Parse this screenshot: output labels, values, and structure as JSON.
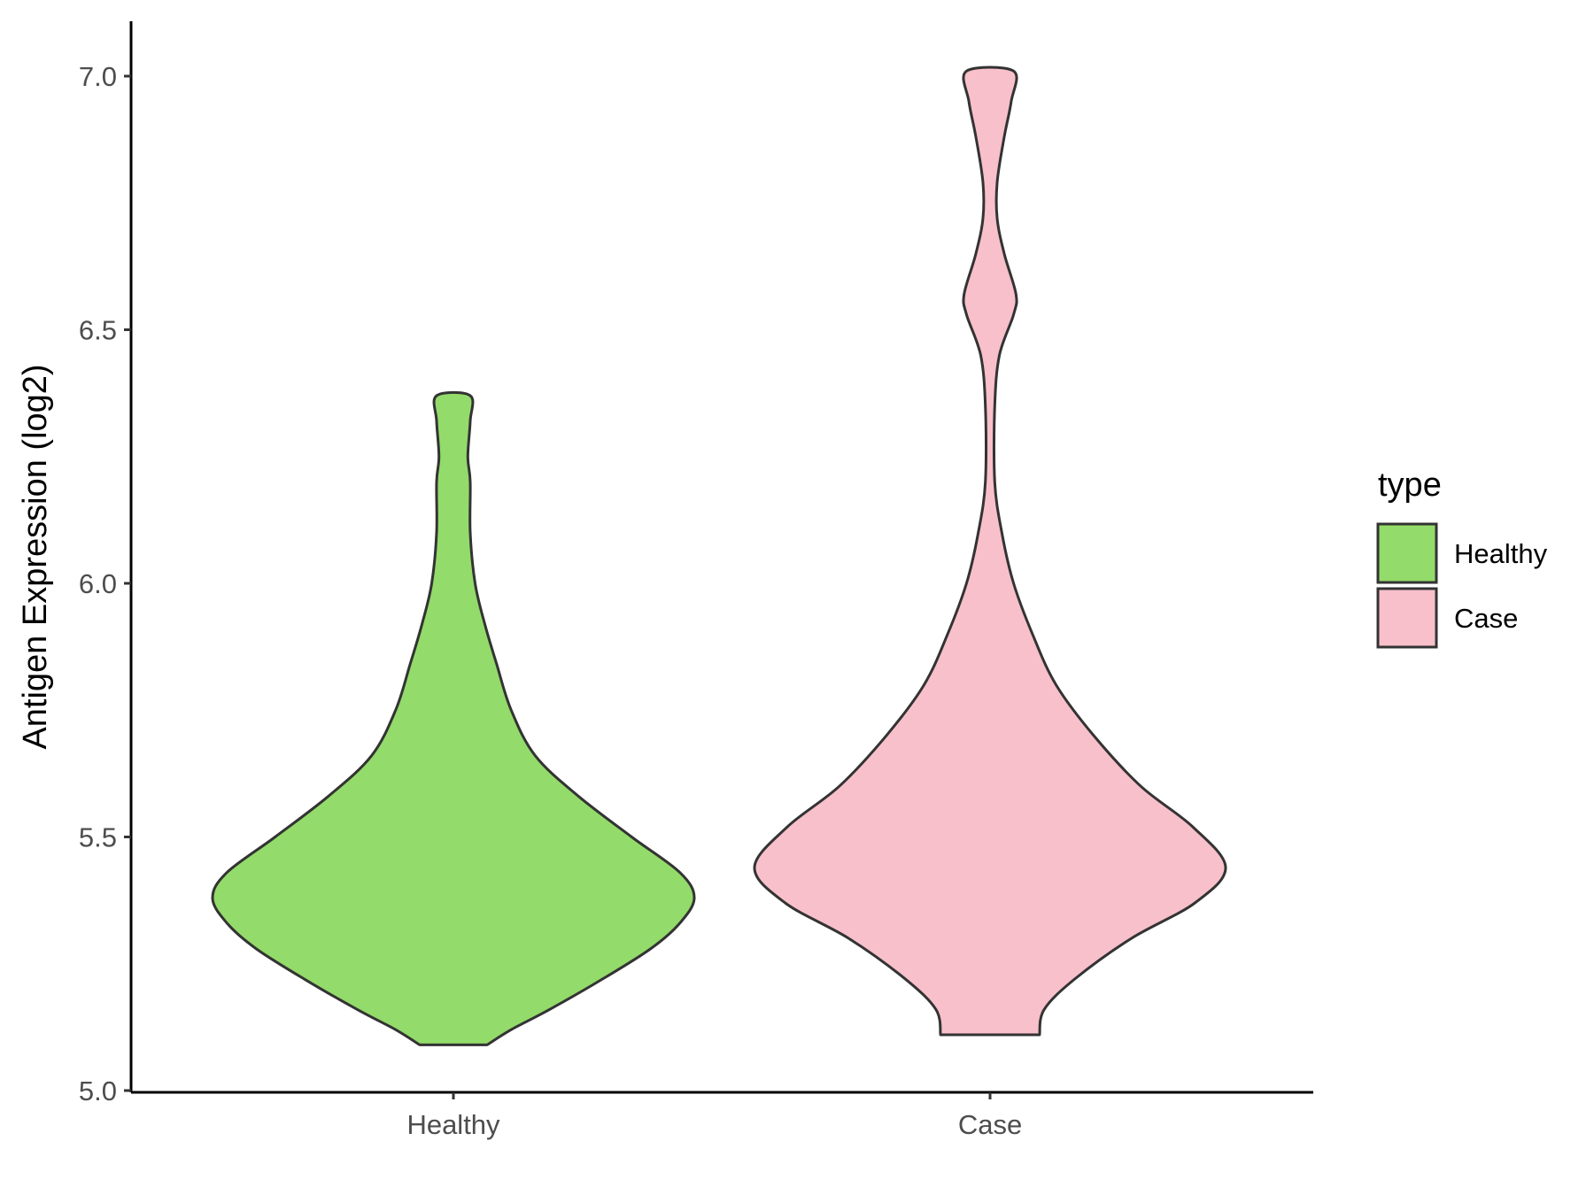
{
  "chart_data": {
    "type": "violin",
    "xlabel": "",
    "ylabel": "Antigen Expression (log2)",
    "ylim": [
      5.0,
      7.0
    ],
    "yticks": [
      "5.0",
      "5.5",
      "6.0",
      "6.5",
      "7.0"
    ],
    "categories": [
      "Healthy",
      "Case"
    ],
    "grid": false,
    "legend": {
      "title": "type",
      "placement": "right",
      "entries": [
        {
          "label": "Healthy",
          "color": "#93db6a"
        },
        {
          "label": "Case",
          "color": "#f8c0cb"
        }
      ]
    },
    "series": [
      {
        "category": "Healthy",
        "color": "#93db6a",
        "min": 5.09,
        "max": 6.37,
        "density_profile": [
          [
            5.09,
            0.14
          ],
          [
            5.12,
            0.24
          ],
          [
            5.16,
            0.4
          ],
          [
            5.22,
            0.62
          ],
          [
            5.28,
            0.82
          ],
          [
            5.33,
            0.94
          ],
          [
            5.38,
            1.0
          ],
          [
            5.43,
            0.94
          ],
          [
            5.5,
            0.74
          ],
          [
            5.58,
            0.52
          ],
          [
            5.66,
            0.34
          ],
          [
            5.75,
            0.24
          ],
          [
            5.84,
            0.18
          ],
          [
            5.92,
            0.13
          ],
          [
            6.0,
            0.09
          ],
          [
            6.1,
            0.07
          ],
          [
            6.2,
            0.07
          ],
          [
            6.25,
            0.06
          ],
          [
            6.32,
            0.07
          ],
          [
            6.37,
            0.07
          ]
        ]
      },
      {
        "category": "Case",
        "color": "#f8c0cb",
        "min": 5.11,
        "max": 7.01,
        "density_profile": [
          [
            5.11,
            0.21
          ],
          [
            5.16,
            0.23
          ],
          [
            5.22,
            0.36
          ],
          [
            5.3,
            0.6
          ],
          [
            5.37,
            0.87
          ],
          [
            5.44,
            1.0
          ],
          [
            5.52,
            0.86
          ],
          [
            5.6,
            0.64
          ],
          [
            5.7,
            0.44
          ],
          [
            5.8,
            0.28
          ],
          [
            5.9,
            0.18
          ],
          [
            6.0,
            0.1
          ],
          [
            6.1,
            0.05
          ],
          [
            6.2,
            0.02
          ],
          [
            6.35,
            0.02
          ],
          [
            6.45,
            0.04
          ],
          [
            6.53,
            0.1
          ],
          [
            6.57,
            0.11
          ],
          [
            6.65,
            0.06
          ],
          [
            6.72,
            0.03
          ],
          [
            6.79,
            0.03
          ],
          [
            6.88,
            0.06
          ],
          [
            6.95,
            0.09
          ],
          [
            7.01,
            0.1
          ]
        ]
      }
    ]
  }
}
